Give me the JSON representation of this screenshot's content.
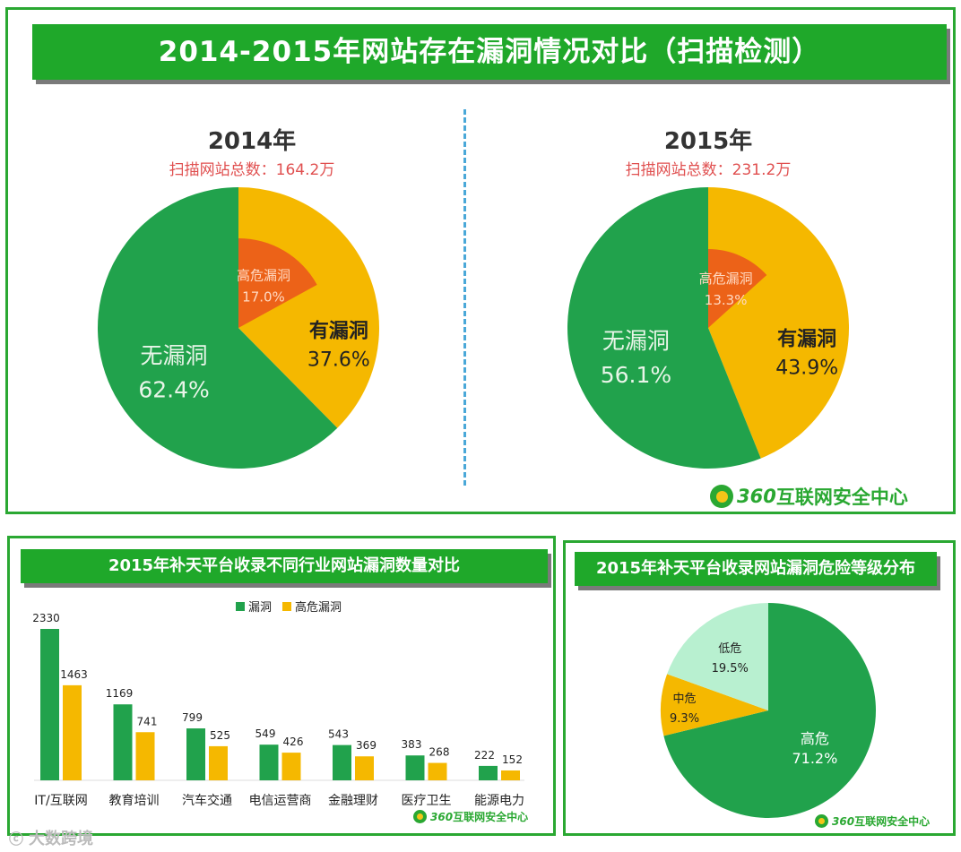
{
  "top": {
    "title": "2014-2015年网站存在漏洞情况对比（扫描检测）",
    "logo_number": "360",
    "logo_text": "互联网安全中心",
    "pies": [
      {
        "year": "2014年",
        "subtitle": "扫描网站总数：164.2万",
        "slices": [
          {
            "name": "有漏洞",
            "label": "有漏洞",
            "pct": "37.6%",
            "value": 37.6,
            "color": "#f5b800"
          },
          {
            "name": "无漏洞",
            "label": "无漏洞",
            "pct": "62.4%",
            "value": 62.4,
            "color": "#21a24c"
          }
        ],
        "high_risk": {
          "label": "高危漏洞",
          "pct": "17.0%",
          "value": 17.0,
          "color": "#ec6218"
        }
      },
      {
        "year": "2015年",
        "subtitle": "扫描网站总数：231.2万",
        "slices": [
          {
            "name": "有漏洞",
            "label": "有漏洞",
            "pct": "43.9%",
            "value": 43.9,
            "color": "#f5b800"
          },
          {
            "name": "无漏洞",
            "label": "无漏洞",
            "pct": "56.1%",
            "value": 56.1,
            "color": "#21a24c"
          }
        ],
        "high_risk": {
          "label": "高危漏洞",
          "pct": "13.3%",
          "value": 13.3,
          "color": "#ec6218"
        }
      }
    ]
  },
  "bottom_left": {
    "title": "2015年补天平台收录不同行业网站漏洞数量对比",
    "logo_number": "360",
    "logo_text": "互联网安全中心"
  },
  "bottom_right": {
    "title": "2015年补天平台收录网站漏洞危险等级分布",
    "logo_number": "360",
    "logo_text": "互联网安全中心"
  },
  "watermark": "大数跨境",
  "chart_data": [
    {
      "type": "pie",
      "title": "2014年",
      "subtitle": "扫描网站总数：164.2万",
      "labels": [
        "有漏洞",
        "无漏洞"
      ],
      "values": [
        37.6,
        62.4
      ],
      "sub_slice": {
        "label": "高危漏洞",
        "value": 17.0,
        "parent": "有漏洞"
      }
    },
    {
      "type": "pie",
      "title": "2015年",
      "subtitle": "扫描网站总数：231.2万",
      "labels": [
        "有漏洞",
        "无漏洞"
      ],
      "values": [
        43.9,
        56.1
      ],
      "sub_slice": {
        "label": "高危漏洞",
        "value": 13.3,
        "parent": "有漏洞"
      }
    },
    {
      "type": "bar",
      "title": "2015年补天平台收录不同行业网站漏洞数量对比",
      "categories": [
        "IT/互联网",
        "教育培训",
        "汽车交通",
        "电信运营商",
        "金融理财",
        "医疗卫生",
        "能源电力"
      ],
      "series": [
        {
          "name": "漏洞",
          "color": "#21a24c",
          "values": [
            2330,
            1169,
            799,
            549,
            543,
            383,
            222
          ]
        },
        {
          "name": "高危漏洞",
          "color": "#f5b800",
          "values": [
            1463,
            741,
            525,
            426,
            369,
            268,
            152
          ]
        }
      ],
      "ylim": [
        0,
        2330
      ],
      "legend": "top-center"
    },
    {
      "type": "pie",
      "title": "2015年补天平台收录网站漏洞危险等级分布",
      "slices": [
        {
          "label": "高危",
          "pct": "71.2%",
          "value": 71.2,
          "color": "#21a24c"
        },
        {
          "label": "中危",
          "pct": "9.3%",
          "value": 9.3,
          "color": "#f5b800"
        },
        {
          "label": "低危",
          "pct": "19.5%",
          "value": 19.5,
          "color": "#b8f0d0"
        }
      ]
    }
  ]
}
